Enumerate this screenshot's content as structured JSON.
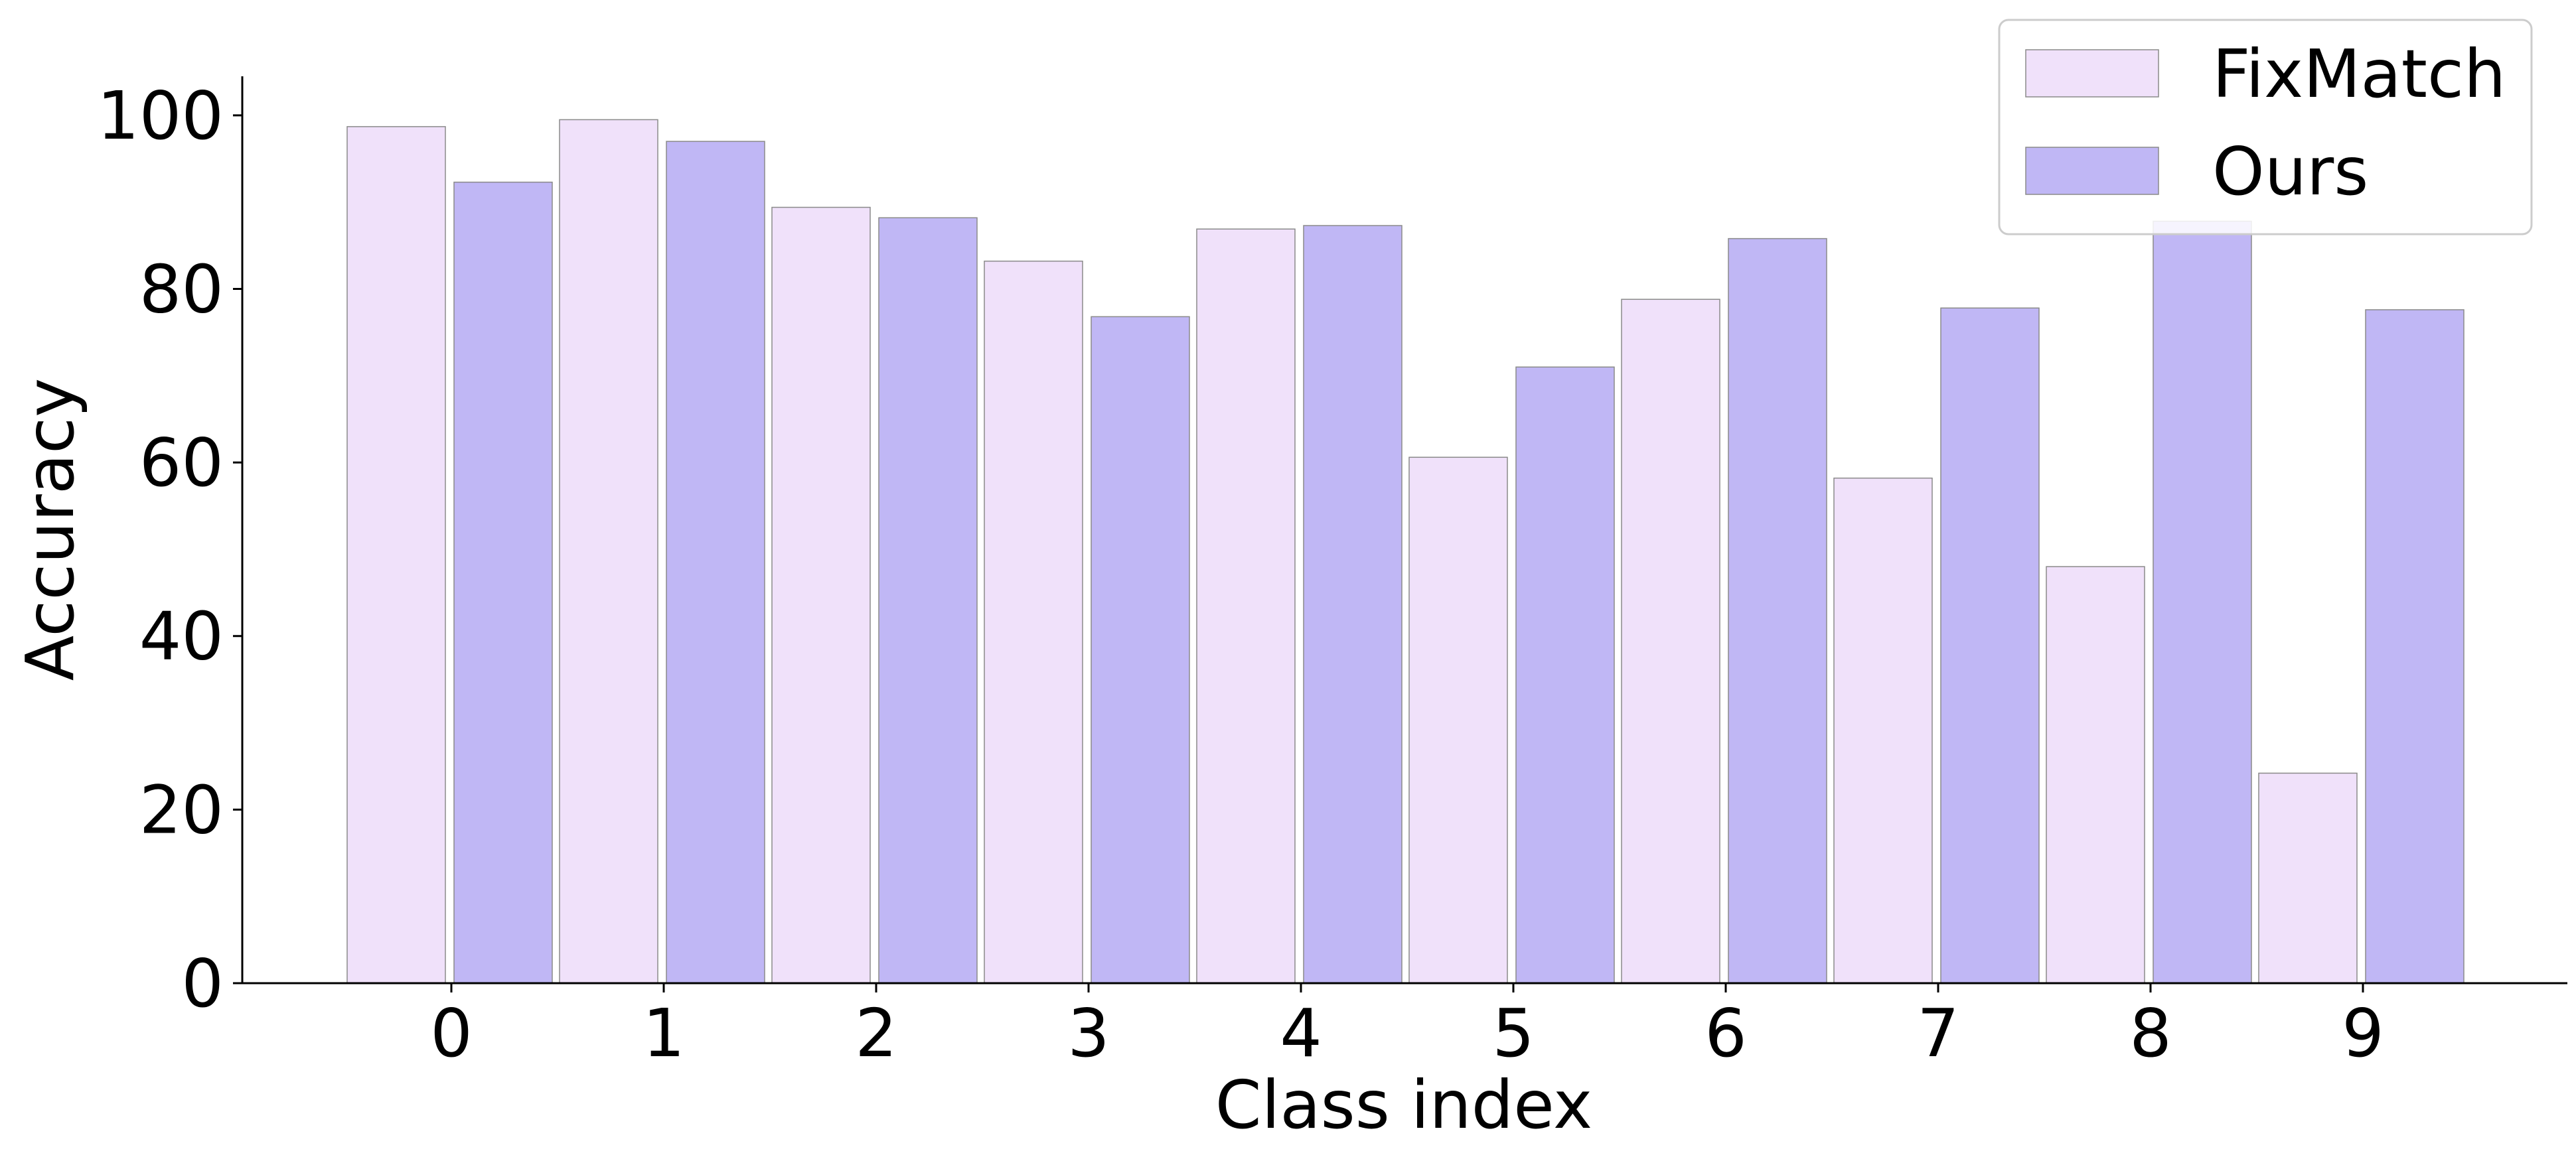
{
  "chart_data": {
    "type": "bar",
    "xlabel": "Class index",
    "ylabel": "Accuracy",
    "categories": [
      "0",
      "1",
      "2",
      "3",
      "4",
      "5",
      "6",
      "7",
      "8",
      "9"
    ],
    "series": [
      {
        "name": "FixMatch",
        "color": "#F0E1FA",
        "values": [
          98.7,
          99.5,
          89.4,
          83.2,
          86.9,
          60.6,
          78.8,
          58.2,
          48.0,
          24.2
        ]
      },
      {
        "name": "Ours",
        "color": "#C0B7F5",
        "values": [
          92.3,
          97.0,
          88.2,
          76.8,
          87.3,
          71.0,
          85.8,
          77.8,
          87.8,
          77.6
        ]
      }
    ],
    "ylim": [
      0,
      104.5
    ],
    "yticks": [
      "0",
      "20",
      "40",
      "60",
      "80",
      "100"
    ],
    "grid": false,
    "legend_position": "top-right"
  }
}
